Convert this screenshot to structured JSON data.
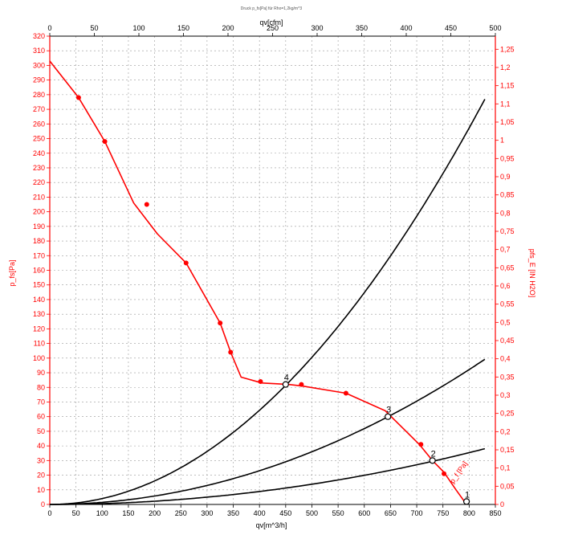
{
  "chart_data": {
    "type": "line",
    "title": "Druck p_fs[Pa] für Rho=1,2kg/m^3",
    "xlabel": "qv[m^3/h]",
    "x2label": "qv[cfm]",
    "ylabel": "p_fs[Pa]",
    "y2label": "pfs_E [IN H2O]",
    "xlim": [
      0,
      850
    ],
    "ylim": [
      0,
      320
    ],
    "x2lim": [
      0,
      500
    ],
    "y2lim": [
      0,
      1.286
    ],
    "x_ticks": [
      "0",
      "50",
      "100",
      "150",
      "200",
      "250",
      "300",
      "350",
      "400",
      "450",
      "500",
      "550",
      "600",
      "650",
      "700",
      "750",
      "800",
      "850"
    ],
    "y_ticks": [
      "0",
      "10",
      "20",
      "30",
      "40",
      "50",
      "60",
      "70",
      "80",
      "90",
      "100",
      "110",
      "120",
      "130",
      "140",
      "150",
      "160",
      "170",
      "180",
      "190",
      "200",
      "210",
      "220",
      "230",
      "240",
      "250",
      "260",
      "270",
      "280",
      "290",
      "300",
      "310",
      "320"
    ],
    "x2_ticks": [
      "0",
      "50",
      "100",
      "150",
      "200",
      "250",
      "300",
      "350",
      "400",
      "450",
      "500"
    ],
    "y2_ticks": [
      "0",
      "0,05",
      "0,1",
      "0,15",
      "0,2",
      "0,25",
      "0,3",
      "0,35",
      "0,4",
      "0,45",
      "0,5",
      "0,55",
      "0,6",
      "0,65",
      "0,7",
      "0,75",
      "0,8",
      "0,85",
      "0,9",
      "0,95",
      "1",
      "1,05",
      "1,1",
      "1,15",
      "1,2",
      "1,25"
    ],
    "grid": true,
    "fan_curve": {
      "name": "p_f [Pa]",
      "color": "#ff0000",
      "x": [
        0,
        55,
        105,
        160,
        205,
        260,
        325,
        345,
        365,
        405,
        455,
        480,
        565,
        640,
        705,
        730,
        752,
        775,
        795
      ],
      "y": [
        303,
        278,
        248,
        206,
        185,
        165,
        124,
        104,
        87,
        83,
        82,
        81,
        76,
        64,
        41,
        30,
        22,
        10,
        0
      ],
      "markers": [
        {
          "x": 55,
          "y": 278
        },
        {
          "x": 105,
          "y": 248
        },
        {
          "x": 185,
          "y": 205
        },
        {
          "x": 260,
          "y": 165
        },
        {
          "x": 325,
          "y": 124
        },
        {
          "x": 345,
          "y": 104
        },
        {
          "x": 402,
          "y": 84
        },
        {
          "x": 480,
          "y": 82
        },
        {
          "x": 565,
          "y": 76
        },
        {
          "x": 708,
          "y": 41
        },
        {
          "x": 752,
          "y": 21
        }
      ]
    },
    "system_curves": [
      {
        "coef": 0.000402,
        "x_max": 830
      },
      {
        "coef": 0.000144,
        "x_max": 830
      },
      {
        "coef": 5.53e-05,
        "x_max": 830
      }
    ],
    "operating_points": [
      {
        "label": "4",
        "x": 450,
        "y": 82
      },
      {
        "label": "3",
        "x": 645,
        "y": 60
      },
      {
        "label": "2",
        "x": 730,
        "y": 30
      },
      {
        "label": "1",
        "x": 795,
        "y": 2
      }
    ]
  }
}
